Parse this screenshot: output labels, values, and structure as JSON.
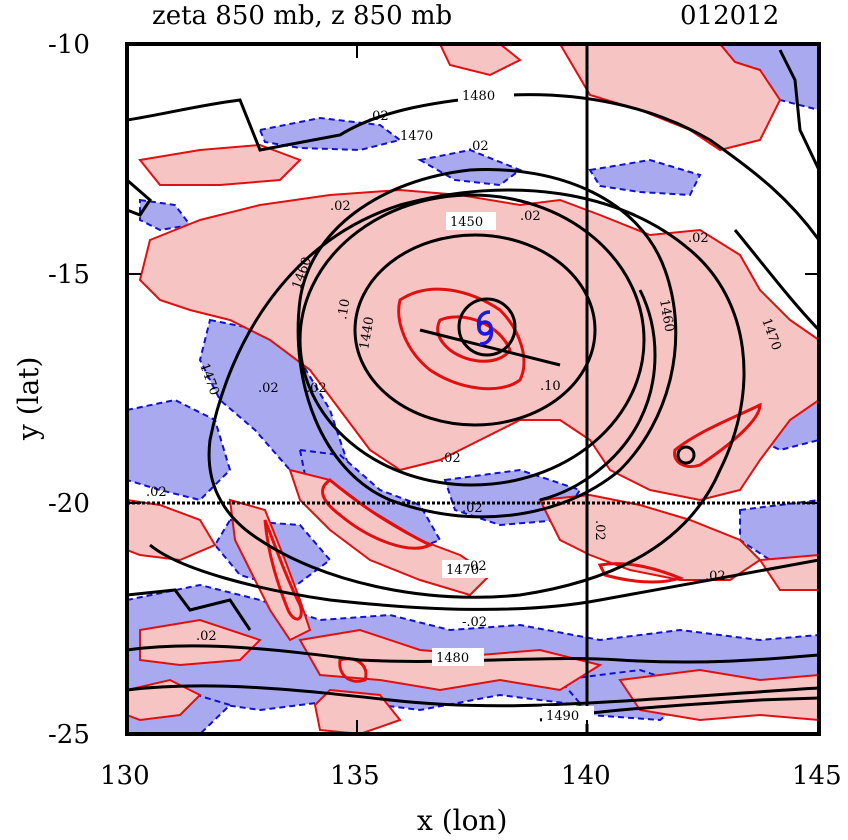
{
  "title": {
    "left": "zeta 850 mb, z 850 mb",
    "right": "012012"
  },
  "axes": {
    "xlabel": "x (lon)",
    "ylabel": "y (lat)",
    "xlim": [
      130,
      145
    ],
    "ylim": [
      -25,
      -10
    ],
    "xticks": [
      "130",
      "135",
      "140",
      "145"
    ],
    "yticks": [
      "-10",
      "-15",
      "-20",
      "-25"
    ]
  },
  "reference_lines": {
    "lon": 140,
    "lat": -20
  },
  "storm_center": {
    "lon": 137.8,
    "lat": -16.2,
    "symbol": "tropical-cyclone"
  },
  "contour_labels": {
    "geopotential": [
      "1480",
      "1470",
      "1460",
      "1450",
      "1440",
      "1460",
      "1470",
      "1470",
      "1480",
      "1490",
      "1470"
    ],
    "vorticity": [
      ".02",
      ".02",
      ".02",
      ".02",
      ".02",
      ".02",
      ".02",
      ".02",
      ".02",
      ".02",
      ".02",
      ".02",
      ".02",
      "-.02",
      ".10",
      ".10",
      ".02"
    ]
  },
  "colors": {
    "positive_fill": "#f7c4c4",
    "positive_contour": "#e01010",
    "negative_fill": "#a9a9ef",
    "negative_contour": "#1010d0",
    "height_contour": "#000000"
  }
}
